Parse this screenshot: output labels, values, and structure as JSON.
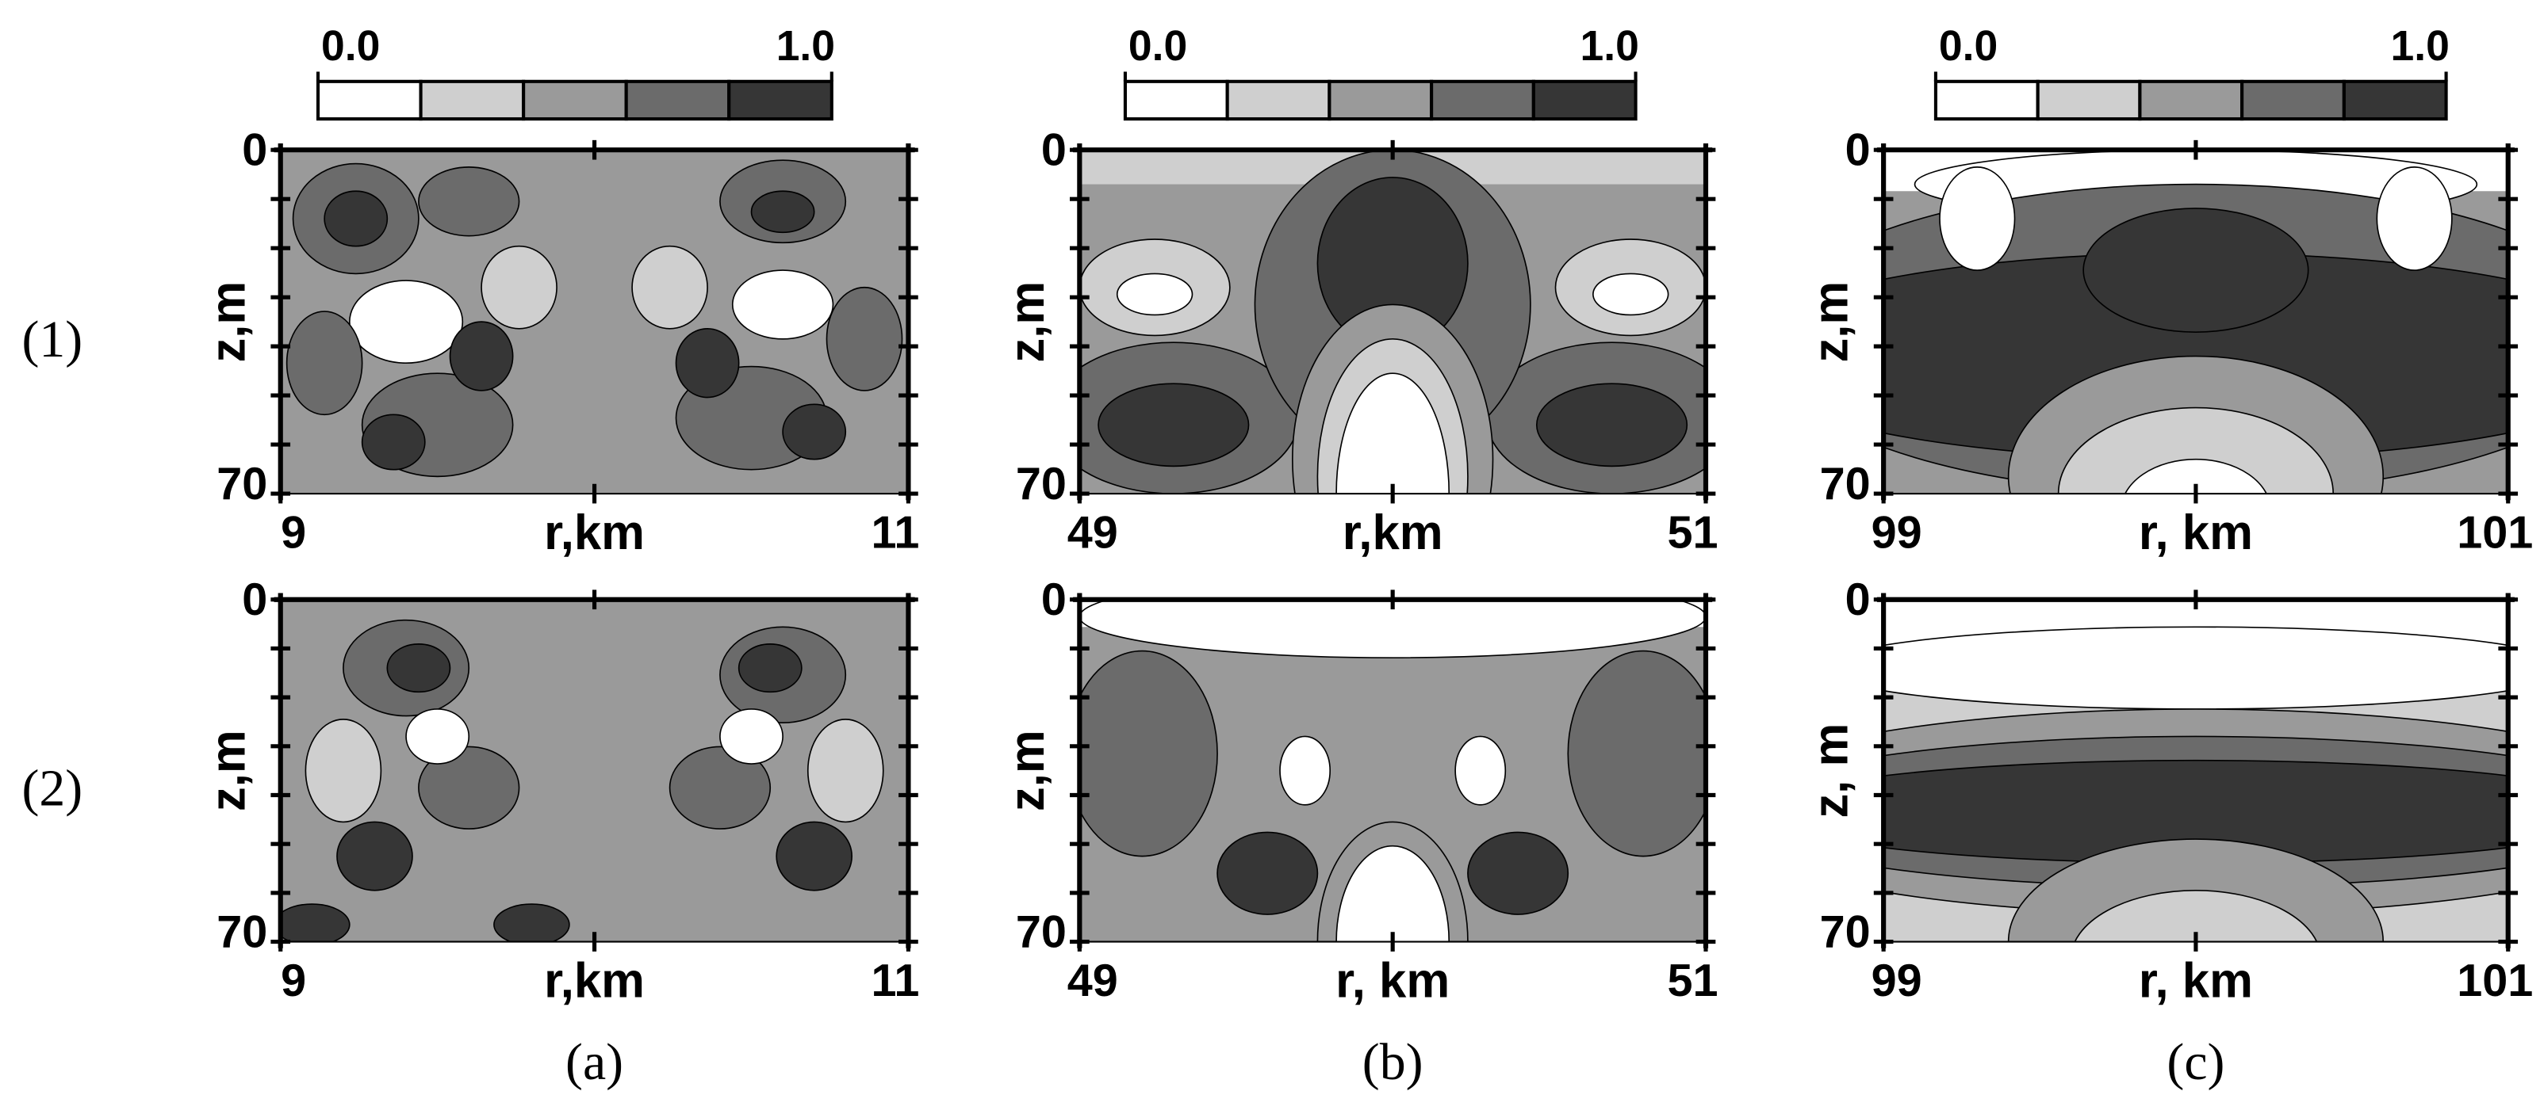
{
  "figure": {
    "row_labels": [
      "(1)",
      "(2)"
    ],
    "column_labels": [
      "(a)",
      "(b)",
      "(c)"
    ]
  },
  "colorbars": [
    {
      "clim": [
        0,
        1
      ],
      "cticks": [
        {
          "value": 0,
          "label": "0.0"
        },
        {
          "value": 1,
          "label": "1.0"
        }
      ],
      "colors": [
        "#ffffff",
        "#cfcfcf",
        "#9a9a9a",
        "#6b6b6b",
        "#363636"
      ]
    },
    {
      "clim": [
        0,
        1
      ],
      "cticks": [
        {
          "value": 0,
          "label": "0.0"
        },
        {
          "value": 1,
          "label": "1.0"
        }
      ],
      "colors": [
        "#ffffff",
        "#cfcfcf",
        "#9a9a9a",
        "#6b6b6b",
        "#363636"
      ]
    },
    {
      "clim": [
        0,
        1
      ],
      "cticks": [
        {
          "value": 0,
          "label": "0.0"
        },
        {
          "value": 1,
          "label": "1.0"
        }
      ],
      "colors": [
        "#ffffff",
        "#cfcfcf",
        "#9a9a9a",
        "#6b6b6b",
        "#363636"
      ]
    }
  ],
  "chart_data": [
    {
      "type": "contour",
      "xlabel": "r,km",
      "ylabel": "z,m",
      "xlim": [
        9,
        11
      ],
      "xticks": [
        9,
        11
      ],
      "xminor": [
        10
      ],
      "ylim": [
        0,
        70
      ],
      "yticks": [
        0,
        70
      ],
      "yminor": [
        10,
        20,
        30,
        40,
        50,
        60
      ],
      "y_inverted": true
    },
    {
      "type": "contour",
      "xlabel": "r,km",
      "ylabel": "z,m",
      "xlim": [
        49,
        51
      ],
      "xticks": [
        49,
        51
      ],
      "xminor": [
        50
      ],
      "ylim": [
        0,
        70
      ],
      "yticks": [
        0,
        70
      ],
      "yminor": [
        10,
        20,
        30,
        40,
        50,
        60
      ],
      "y_inverted": true
    },
    {
      "type": "contour",
      "xlabel": "r, km",
      "ylabel": "z,m",
      "xlim": [
        99,
        101
      ],
      "xticks": [
        99,
        101
      ],
      "xminor": [
        100
      ],
      "ylim": [
        0,
        70
      ],
      "yticks": [
        0,
        70
      ],
      "yminor": [
        10,
        20,
        30,
        40,
        50,
        60
      ],
      "y_inverted": true
    },
    {
      "type": "contour",
      "xlabel": "r,km",
      "ylabel": "z,m",
      "xlim": [
        9,
        11
      ],
      "xticks": [
        9,
        11
      ],
      "xminor": [
        10
      ],
      "ylim": [
        0,
        70
      ],
      "yticks": [
        0,
        70
      ],
      "yminor": [
        10,
        20,
        30,
        40,
        50,
        60
      ],
      "y_inverted": true
    },
    {
      "type": "contour",
      "xlabel": "r, km",
      "ylabel": "z,m",
      "xlim": [
        49,
        51
      ],
      "xticks": [
        49,
        51
      ],
      "xminor": [
        50
      ],
      "ylim": [
        0,
        70
      ],
      "yticks": [
        0,
        70
      ],
      "yminor": [
        10,
        20,
        30,
        40,
        50,
        60
      ],
      "y_inverted": true
    },
    {
      "type": "contour",
      "xlabel": "r, km",
      "ylabel": "z, m",
      "xlim": [
        99,
        101
      ],
      "xticks": [
        99,
        101
      ],
      "xminor": [
        100
      ],
      "ylim": [
        0,
        70
      ],
      "yticks": [
        0,
        70
      ],
      "yminor": [
        10,
        20,
        30,
        40,
        50,
        60
      ],
      "y_inverted": true
    }
  ]
}
